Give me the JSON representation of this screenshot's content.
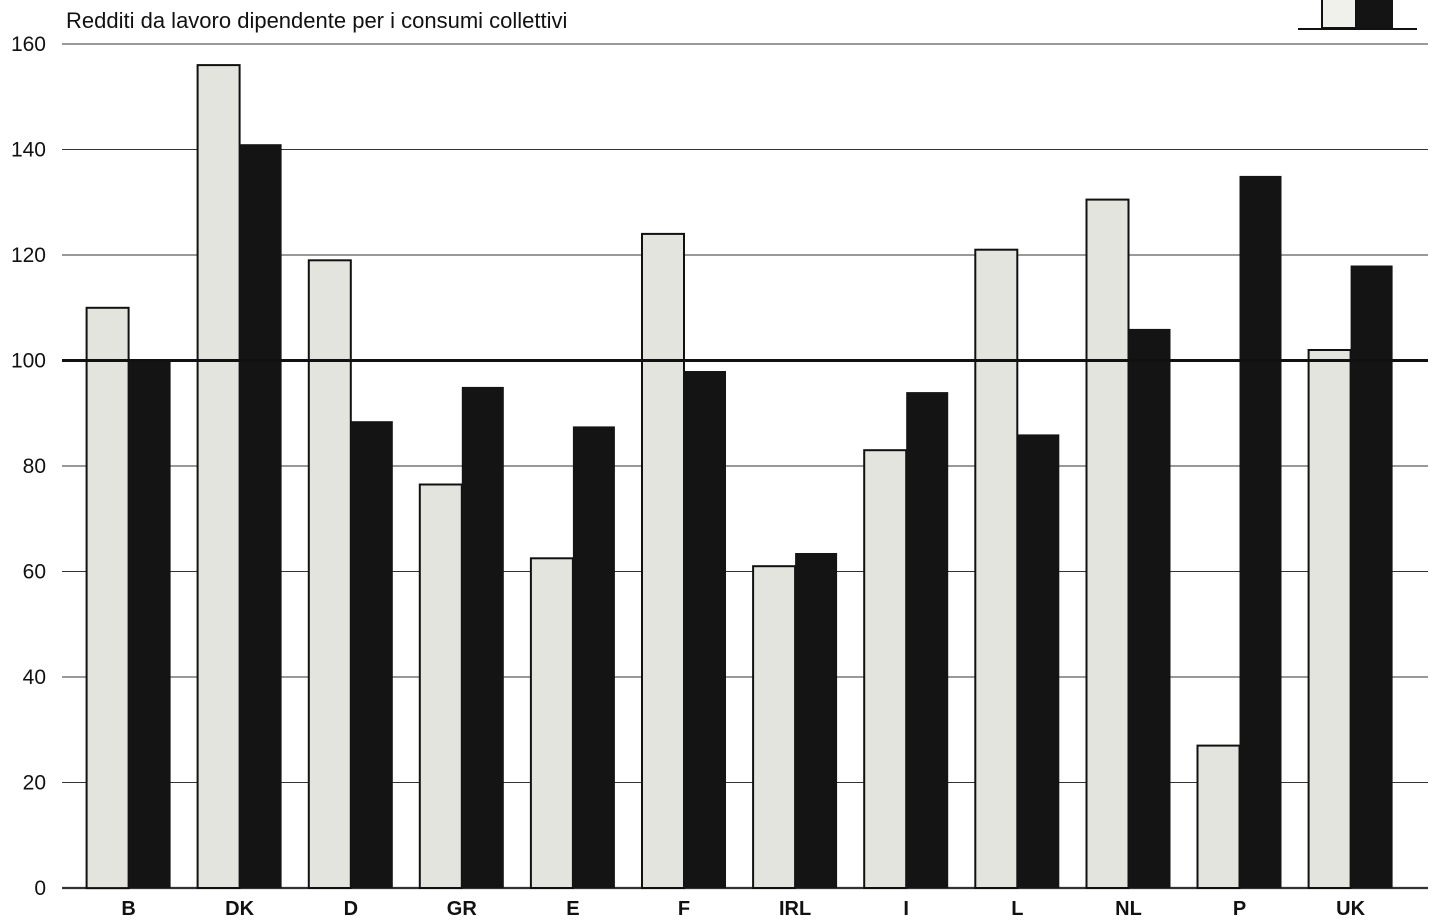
{
  "chart_data": {
    "type": "bar",
    "title": "Redditi da lavoro dipendente per i consumi collettivi",
    "xlabel": "",
    "ylabel": "",
    "ylim": [
      0,
      160
    ],
    "yticks": [
      0,
      20,
      40,
      60,
      80,
      100,
      120,
      140,
      160
    ],
    "reference_line": 100,
    "grid": true,
    "legend_placement": "top-right",
    "categories": [
      "B",
      "DK",
      "D",
      "GR",
      "E",
      "F",
      "IRL",
      "I",
      "L",
      "NL",
      "P",
      "UK"
    ],
    "series": [
      {
        "values": [
          110,
          156,
          119,
          76.5,
          62.5,
          124,
          61,
          83,
          121,
          130.5,
          27,
          102
        ],
        "color": "#e4e4de"
      },
      {
        "values": [
          100,
          141,
          88.5,
          95,
          87.5,
          98,
          63.5,
          94,
          86,
          106,
          135,
          118
        ],
        "color": "#141414"
      }
    ]
  }
}
